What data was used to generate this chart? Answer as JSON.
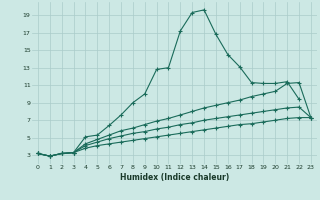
{
  "xlabel": "Humidex (Indice chaleur)",
  "ylabel": "",
  "bg_color": "#cce8e4",
  "grid_color": "#aaccca",
  "line_color": "#1a6b5a",
  "xlim": [
    -0.5,
    23.5
  ],
  "ylim": [
    2.0,
    20.5
  ],
  "xticks": [
    0,
    1,
    2,
    3,
    4,
    5,
    6,
    7,
    8,
    9,
    10,
    11,
    12,
    13,
    14,
    15,
    16,
    17,
    18,
    19,
    20,
    21,
    22,
    23
  ],
  "yticks": [
    3,
    5,
    7,
    9,
    11,
    13,
    15,
    17,
    19
  ],
  "line1_x": [
    0,
    1,
    2,
    3,
    4,
    5,
    6,
    7,
    8,
    9,
    10,
    11,
    12,
    13,
    14,
    15,
    16,
    17,
    18,
    19,
    20,
    21,
    22
  ],
  "line1_y": [
    3.2,
    2.9,
    3.2,
    3.3,
    5.1,
    5.3,
    6.4,
    7.6,
    9.0,
    10.0,
    12.8,
    13.0,
    17.2,
    19.3,
    19.6,
    16.8,
    14.5,
    13.1,
    11.3,
    11.2,
    11.2,
    11.4,
    9.4
  ],
  "line2_x": [
    0,
    1,
    2,
    3,
    4,
    5,
    6,
    7,
    8,
    9,
    10,
    11,
    12,
    13,
    14,
    15,
    16,
    17,
    18,
    19,
    20,
    21,
    22,
    23
  ],
  "line2_y": [
    3.2,
    2.9,
    3.2,
    3.3,
    4.3,
    4.8,
    5.3,
    5.8,
    6.1,
    6.5,
    6.9,
    7.2,
    7.6,
    8.0,
    8.4,
    8.7,
    9.0,
    9.3,
    9.7,
    10.0,
    10.3,
    11.2,
    11.3,
    7.3
  ],
  "line3_x": [
    0,
    1,
    2,
    3,
    4,
    5,
    6,
    7,
    8,
    9,
    10,
    11,
    12,
    13,
    14,
    15,
    16,
    17,
    18,
    19,
    20,
    21,
    22,
    23
  ],
  "line3_y": [
    3.2,
    2.9,
    3.2,
    3.3,
    4.1,
    4.5,
    4.9,
    5.2,
    5.5,
    5.7,
    6.0,
    6.2,
    6.5,
    6.7,
    7.0,
    7.2,
    7.4,
    7.6,
    7.8,
    8.0,
    8.2,
    8.4,
    8.5,
    7.3
  ],
  "line4_x": [
    0,
    1,
    2,
    3,
    4,
    5,
    6,
    7,
    8,
    9,
    10,
    11,
    12,
    13,
    14,
    15,
    16,
    17,
    18,
    19,
    20,
    21,
    22,
    23
  ],
  "line4_y": [
    3.2,
    2.9,
    3.2,
    3.3,
    3.8,
    4.1,
    4.3,
    4.5,
    4.7,
    4.9,
    5.1,
    5.3,
    5.5,
    5.7,
    5.9,
    6.1,
    6.3,
    6.5,
    6.6,
    6.8,
    7.0,
    7.2,
    7.3,
    7.3
  ]
}
